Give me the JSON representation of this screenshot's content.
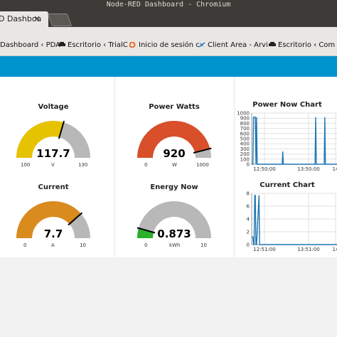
{
  "window": {
    "title": "Node-RED Dashboard - Chromium"
  },
  "tab": {
    "label": "D Dashboa",
    "close": "✕"
  },
  "bookmarks": [
    {
      "label": "Dashboard ‹ PDA",
      "icon": "none"
    },
    {
      "label": "Escritorio ‹ TrialC",
      "icon": "car-icon"
    },
    {
      "label": "Inicio de sesión c",
      "icon": "cpanel-icon"
    },
    {
      "label": "Client Area - Arvi",
      "icon": "leaf-icon"
    },
    {
      "label": "Escritorio ‹ Com",
      "icon": "car-icon"
    }
  ],
  "gauges": [
    {
      "id": "voltage",
      "title": "Voltage",
      "value": 117.7,
      "display": "117.7",
      "min": 100,
      "max": 130,
      "min_label": "100",
      "max_label": "130",
      "unit": "V",
      "color": "#e6c300"
    },
    {
      "id": "power",
      "title": "Power Watts",
      "value": 920,
      "display": "920",
      "min": 0,
      "max": 1000,
      "min_label": "0",
      "max_label": "1000",
      "unit": "W",
      "color": "#d84f2a"
    },
    {
      "id": "current",
      "title": "Current",
      "value": 7.7,
      "display": "7.7",
      "min": 0,
      "max": 10,
      "min_label": "0",
      "max_label": "10",
      "unit": "A",
      "color": "#d98b1e"
    },
    {
      "id": "energy",
      "title": "Energy Now",
      "value": 0.873,
      "display": "0.873",
      "min": 0,
      "max": 10,
      "min_label": "0",
      "max_label": "10",
      "unit": "kWh",
      "color": "#2ab02a"
    }
  ],
  "chart_data": [
    {
      "type": "line",
      "title": "Power Now Chart",
      "ylim": [
        0,
        1000
      ],
      "yticks": [
        "1000",
        "900",
        "800",
        "700",
        "600",
        "500",
        "400",
        "300",
        "200",
        "100",
        "0"
      ],
      "xticks": [
        "12:50:00",
        "13:50:00",
        "14"
      ],
      "series": [
        {
          "x_min": [
            0,
            2,
            3,
            6,
            7,
            8,
            9,
            50,
            51,
            52,
            104,
            105,
            106,
            119,
            120,
            121,
            140
          ],
          "values": [
            0,
            0,
            920,
            920,
            0,
            920,
            0,
            0,
            250,
            0,
            0,
            920,
            0,
            0,
            920,
            0,
            0
          ]
        }
      ],
      "color": "#1f77b4"
    },
    {
      "type": "line",
      "title": "Current Chart",
      "ylim": [
        0,
        8
      ],
      "yticks": [
        "8",
        "6",
        "4",
        "2",
        "0"
      ],
      "xticks": [
        "12:51:00",
        "13:51:00",
        "14"
      ],
      "series": [
        {
          "x_min": [
            0,
            1,
            2,
            3,
            4,
            5,
            6,
            7,
            8,
            12,
            13,
            14,
            140
          ],
          "values": [
            1.2,
            1.2,
            1.2,
            0,
            0,
            7.7,
            7.7,
            0,
            0,
            7.7,
            0,
            0,
            0
          ]
        }
      ],
      "color": "#1f77b4"
    }
  ]
}
